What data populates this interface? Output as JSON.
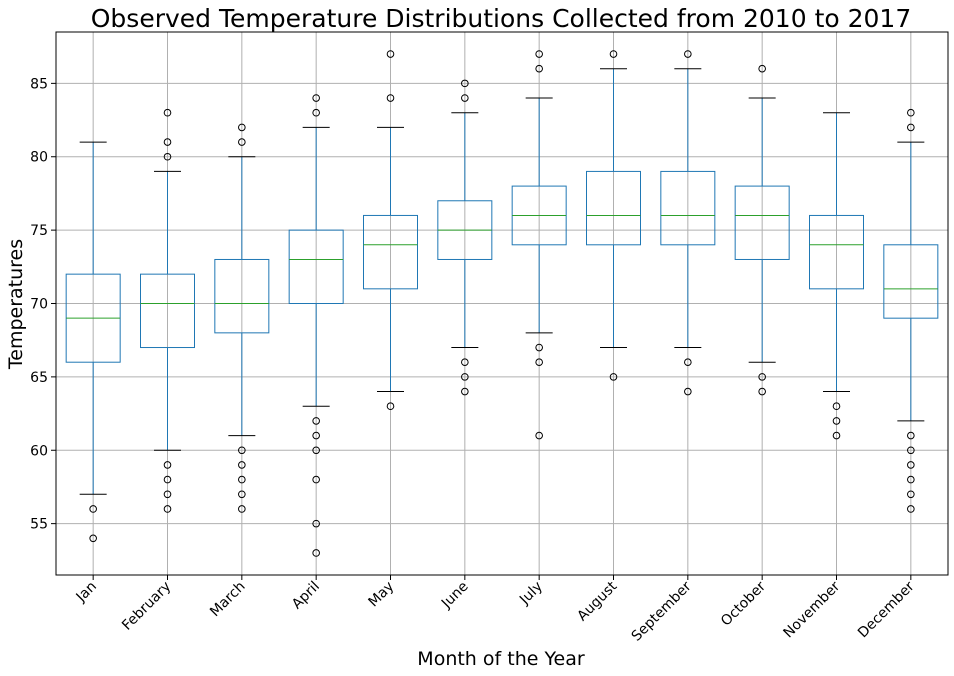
{
  "chart_data": {
    "type": "boxplot",
    "title": "Observed Temperature Distributions Collected from 2010 to 2017",
    "xlabel": "Month of the Year",
    "ylabel": "Temperatures",
    "ylim": [
      51.5,
      88.5
    ],
    "yticks": [
      55,
      60,
      65,
      70,
      75,
      80,
      85
    ],
    "grid": true,
    "legend": "none",
    "colors": {
      "box": "#1f77b4",
      "median": "#2ca02c",
      "cap": "#000000",
      "flier": "#000000",
      "grid": "#b0b0b0"
    },
    "categories": [
      "Jan",
      "February",
      "March",
      "April",
      "May",
      "June",
      "July",
      "August",
      "September",
      "October",
      "November",
      "December"
    ],
    "boxes": [
      {
        "whislo": 57,
        "q1": 66,
        "med": 69,
        "q3": 72,
        "whishi": 81,
        "fliers": [
          56,
          54
        ]
      },
      {
        "whislo": 60,
        "q1": 67,
        "med": 70,
        "q3": 72,
        "whishi": 79,
        "fliers": [
          59,
          58,
          57,
          56,
          80,
          81,
          83
        ]
      },
      {
        "whislo": 61,
        "q1": 68,
        "med": 70,
        "q3": 73,
        "whishi": 80,
        "fliers": [
          60,
          59,
          58,
          57,
          56,
          81,
          82
        ]
      },
      {
        "whislo": 63,
        "q1": 70,
        "med": 73,
        "q3": 75,
        "whishi": 82,
        "fliers": [
          62,
          61,
          60,
          58,
          55,
          53,
          83,
          84
        ]
      },
      {
        "whislo": 64,
        "q1": 71,
        "med": 74,
        "q3": 76,
        "whishi": 82,
        "fliers": [
          63,
          84,
          87
        ]
      },
      {
        "whislo": 67,
        "q1": 73,
        "med": 75,
        "q3": 77,
        "whishi": 83,
        "fliers": [
          66,
          65,
          64,
          84,
          85
        ]
      },
      {
        "whislo": 68,
        "q1": 74,
        "med": 76,
        "q3": 78,
        "whishi": 84,
        "fliers": [
          67,
          66,
          61,
          86,
          87
        ]
      },
      {
        "whislo": 67,
        "q1": 74,
        "med": 76,
        "q3": 79,
        "whishi": 86,
        "fliers": [
          65,
          87
        ]
      },
      {
        "whislo": 67,
        "q1": 74,
        "med": 76,
        "q3": 79,
        "whishi": 86,
        "fliers": [
          66,
          64,
          87
        ]
      },
      {
        "whislo": 66,
        "q1": 73,
        "med": 76,
        "q3": 78,
        "whishi": 84,
        "fliers": [
          65,
          64,
          86
        ]
      },
      {
        "whislo": 64,
        "q1": 71,
        "med": 74,
        "q3": 76,
        "whishi": 83,
        "fliers": [
          63,
          62,
          61
        ]
      },
      {
        "whislo": 62,
        "q1": 69,
        "med": 71,
        "q3": 74,
        "whishi": 81,
        "fliers": [
          61,
          60,
          59,
          58,
          57,
          56,
          82,
          83
        ]
      }
    ]
  }
}
